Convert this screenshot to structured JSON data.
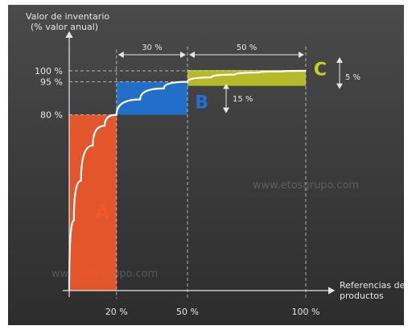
{
  "chart_data": {
    "type": "area",
    "title": "",
    "ylabel_lines": [
      "Valor de inventario",
      "(% valor anual)"
    ],
    "xlabel_lines": [
      "Referencias de",
      "productos"
    ],
    "x_ticks": [
      "20 %",
      "50 %",
      "100 %"
    ],
    "x_tick_values": [
      20,
      50,
      100
    ],
    "y_ticks": [
      "100 %",
      "95 %",
      "80 %"
    ],
    "y_tick_values": [
      100,
      95,
      80
    ],
    "xlim": [
      0,
      100
    ],
    "ylim": [
      0,
      100
    ],
    "classes": [
      {
        "name": "A",
        "x_start": 0,
        "x_end": 20,
        "y_start": 0,
        "y_end": 80,
        "color": "#f2582a"
      },
      {
        "name": "B",
        "x_start": 20,
        "x_end": 50,
        "y_start": 80,
        "y_end": 95,
        "color": "#1f73d6"
      },
      {
        "name": "C",
        "x_start": 50,
        "x_end": 100,
        "y_start": 95,
        "y_end": 100,
        "color": "#c9cf21"
      }
    ],
    "curve": {
      "x": [
        0,
        2,
        5,
        10,
        15,
        20,
        30,
        40,
        50,
        60,
        70,
        80,
        90,
        100
      ],
      "y": [
        0,
        32,
        50,
        66,
        75,
        80,
        87,
        92,
        95,
        97,
        98.3,
        99.2,
        99.7,
        100
      ]
    },
    "annotations": {
      "top_span_1": "30 %",
      "top_span_2": "50 %",
      "b_span": "15 %",
      "c_span": "5 %"
    },
    "watermark": "www.etosgrupo.com",
    "grid": false,
    "legend": "none"
  },
  "colors": {
    "background_top": "#4a4a4a",
    "background_bottom": "#2d2d2d",
    "text": "#e6e6e6",
    "curve": "#ffffff",
    "guides": "#cfcfcf"
  }
}
